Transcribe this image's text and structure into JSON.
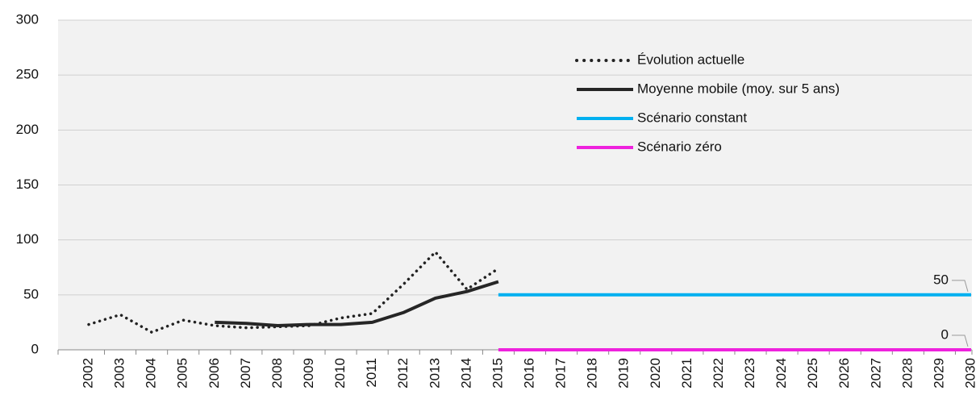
{
  "chart_data": {
    "type": "line",
    "categories": [
      "2002",
      "2003",
      "2004",
      "2005",
      "2006",
      "2007",
      "2008",
      "2009",
      "2010",
      "2011",
      "2012",
      "2013",
      "2014",
      "2015",
      "2016",
      "2017",
      "2018",
      "2019",
      "2020",
      "2021",
      "2022",
      "2023",
      "2024",
      "2025",
      "2026",
      "2027",
      "2028",
      "2029",
      "2030"
    ],
    "series": [
      {
        "name": "Évolution actuelle",
        "color": "#222222",
        "style": "dotted",
        "values": [
          23,
          32,
          16,
          27,
          22,
          20,
          21,
          22,
          29,
          33,
          60,
          89,
          55,
          74,
          null,
          null,
          null,
          null,
          null,
          null,
          null,
          null,
          null,
          null,
          null,
          null,
          null,
          null,
          null
        ]
      },
      {
        "name": "Moyenne mobile (moy. sur 5 ans)",
        "color": "#262626",
        "style": "solid",
        "values": [
          null,
          null,
          null,
          null,
          25,
          24,
          22,
          23,
          23,
          25,
          34,
          47,
          53,
          62,
          null,
          null,
          null,
          null,
          null,
          null,
          null,
          null,
          null,
          null,
          null,
          null,
          null,
          null,
          null
        ]
      },
      {
        "name": "Scénario constant",
        "color": "#00b0f0",
        "style": "solid",
        "values": [
          null,
          null,
          null,
          null,
          null,
          null,
          null,
          null,
          null,
          null,
          null,
          null,
          null,
          50,
          50,
          50,
          50,
          50,
          50,
          50,
          50,
          50,
          50,
          50,
          50,
          50,
          50,
          50,
          50
        ]
      },
      {
        "name": "Scénario zéro",
        "color": "#ee22dd",
        "style": "solid",
        "values": [
          null,
          null,
          null,
          null,
          null,
          null,
          null,
          null,
          null,
          null,
          null,
          null,
          null,
          0,
          0,
          0,
          0,
          0,
          0,
          0,
          0,
          0,
          0,
          0,
          0,
          0,
          0,
          0,
          0
        ]
      }
    ],
    "ylim": [
      0,
      300
    ],
    "yticks": [
      0,
      50,
      100,
      150,
      200,
      250,
      300
    ],
    "grid": true,
    "legend": "top-right"
  }
}
